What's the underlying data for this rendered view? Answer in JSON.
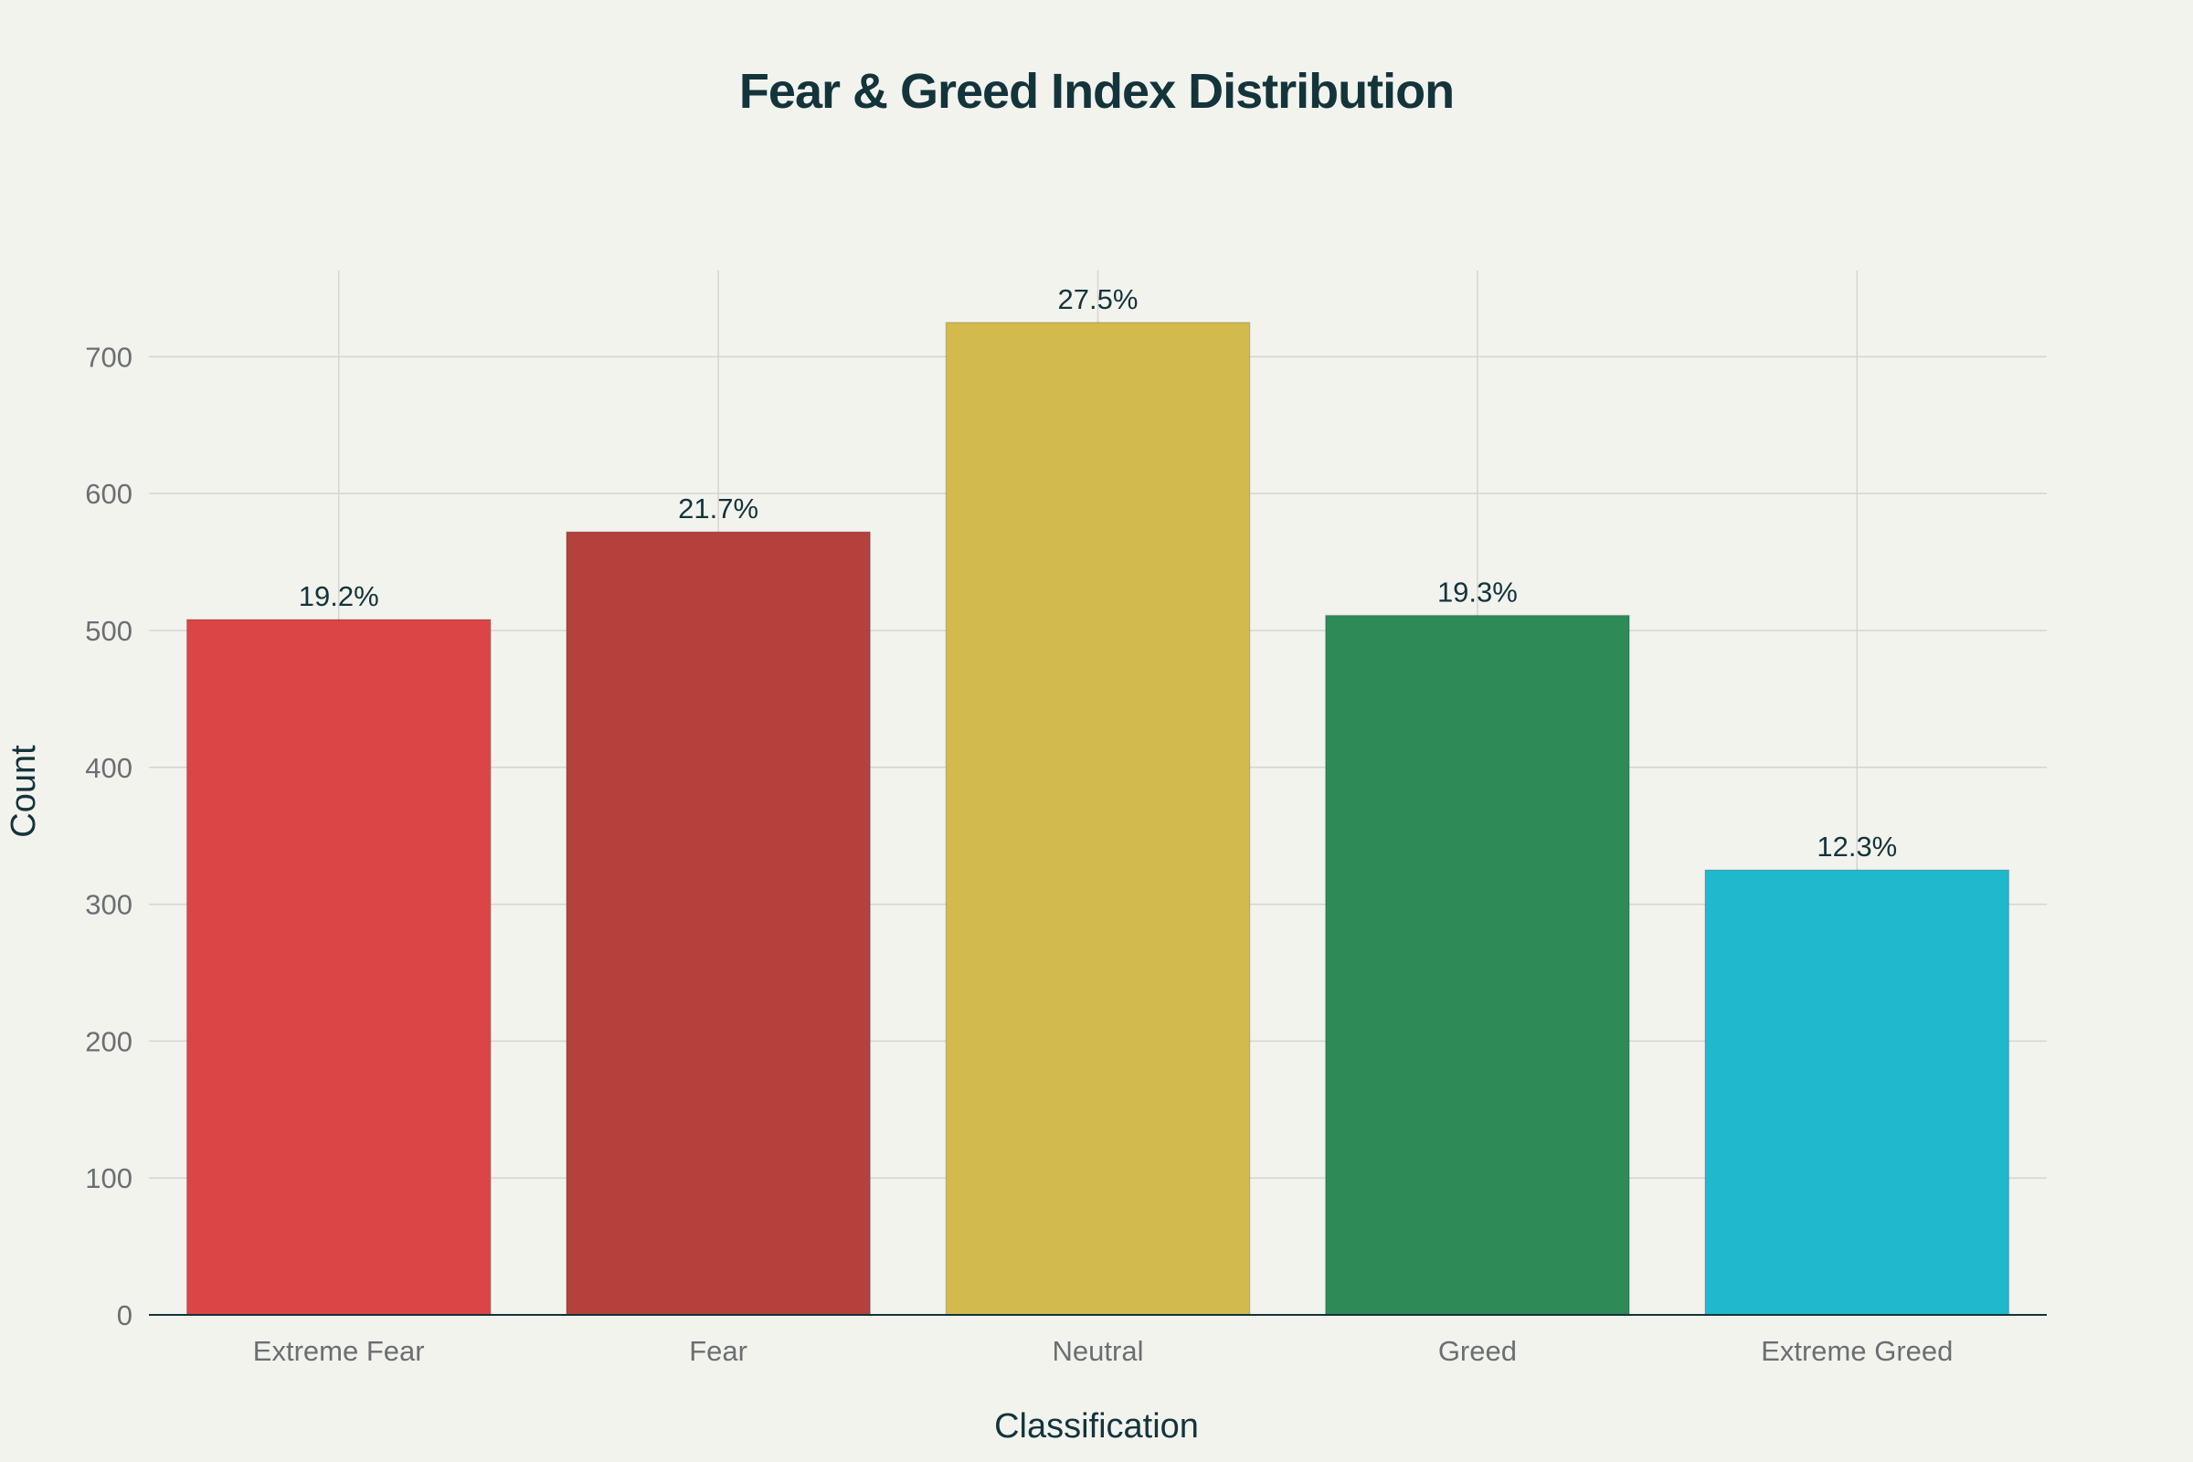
{
  "chart_data": {
    "type": "bar",
    "title": "Fear & Greed Index Distribution",
    "xlabel": "Classification",
    "ylabel": "Count",
    "categories": [
      "Extreme Fear",
      "Fear",
      "Neutral",
      "Greed",
      "Extreme Greed"
    ],
    "values": [
      508,
      572,
      725,
      511,
      325
    ],
    "labels": [
      "19.2%",
      "21.7%",
      "27.5%",
      "19.3%",
      "12.3%"
    ],
    "colors": [
      "#db4545",
      "#b4413c",
      "#d2ba4c",
      "#2e8b57",
      "#1fb8cd"
    ],
    "yticks": [
      0,
      100,
      200,
      300,
      400,
      500,
      600,
      700
    ],
    "ylim": [
      0,
      763
    ],
    "grid": true,
    "legend": "none"
  }
}
